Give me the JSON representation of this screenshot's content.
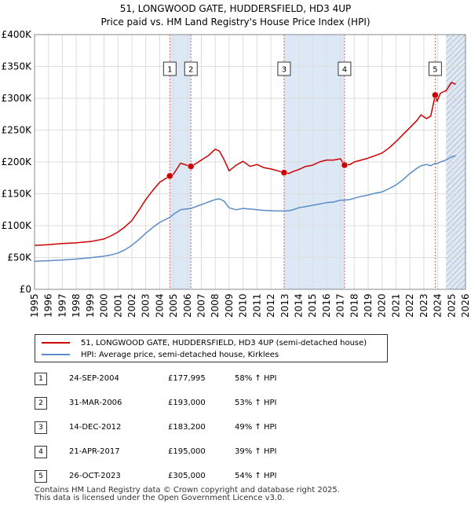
{
  "chart_data": {
    "type": "line",
    "title": "51, LONGWOOD GATE, HUDDERSFIELD, HD3 4UP",
    "subtitle": "Price paid vs. HM Land Registry's House Price Index (HPI)",
    "xlim": [
      1995,
      2026
    ],
    "ylim": [
      0,
      400000
    ],
    "x_ticks": [
      "1995",
      "1996",
      "1997",
      "1998",
      "1999",
      "2000",
      "2001",
      "2002",
      "2003",
      "2004",
      "2005",
      "2006",
      "2007",
      "2008",
      "2009",
      "2010",
      "2011",
      "2012",
      "2013",
      "2014",
      "2015",
      "2016",
      "2017",
      "2018",
      "2019",
      "2020",
      "2021",
      "2022",
      "2023",
      "2024",
      "2025",
      "2026"
    ],
    "y_ticks": [
      {
        "value": 0,
        "label": "£0"
      },
      {
        "value": 50000,
        "label": "£50K"
      },
      {
        "value": 100000,
        "label": "£100K"
      },
      {
        "value": 150000,
        "label": "£150K"
      },
      {
        "value": 200000,
        "label": "£200K"
      },
      {
        "value": 250000,
        "label": "£250K"
      },
      {
        "value": 300000,
        "label": "£300K"
      },
      {
        "value": 350000,
        "label": "£350K"
      },
      {
        "value": 400000,
        "label": "£400K"
      }
    ],
    "grid": true,
    "colors": {
      "property": "#cc0000",
      "hpi": "#5b8cc8",
      "shade": "#dde8f6",
      "marker_line": "#e06666",
      "grid": "#dddddd"
    },
    "series": [
      {
        "name": "51, LONGWOOD GATE, HUDDERSFIELD, HD3 4UP (semi-detached house)",
        "x": [
          1995,
          1996,
          1997,
          1998,
          1999,
          2000,
          2000.5,
          2001,
          2001.5,
          2002,
          2002.5,
          2003,
          2003.5,
          2004,
          2004.73,
          2005,
          2005.5,
          2006.25,
          2006.5,
          2007,
          2007.5,
          2008,
          2008.3,
          2008.6,
          2009,
          2009.5,
          2010,
          2010.5,
          2011,
          2011.5,
          2012,
          2012.5,
          2012.95,
          2013.3,
          2013.6,
          2014,
          2014.5,
          2015,
          2015.5,
          2016,
          2016.5,
          2017.0,
          2017.3,
          2017.7,
          2018,
          2018.5,
          2019,
          2019.5,
          2020,
          2020.5,
          2021,
          2021.5,
          2022,
          2022.5,
          2022.8,
          2023.2,
          2023.5,
          2023.82,
          2023.95,
          2024.2,
          2024.6,
          2025,
          2025.3
        ],
        "values": [
          69000,
          70000,
          72000,
          73000,
          75000,
          79000,
          84000,
          90000,
          98000,
          108000,
          124000,
          141000,
          155000,
          168000,
          177995,
          181000,
          198000,
          193000,
          196000,
          203000,
          210000,
          220000,
          217000,
          205000,
          186000,
          195000,
          201000,
          193000,
          196000,
          191000,
          189000,
          186000,
          183200,
          182000,
          185000,
          188000,
          193000,
          195000,
          200000,
          203000,
          203000,
          205000,
          195000,
          196000,
          200000,
          203000,
          206000,
          210000,
          214000,
          222000,
          232000,
          243000,
          254000,
          265000,
          274000,
          268000,
          272000,
          305000,
          295000,
          308000,
          312000,
          325000,
          322000
        ]
      },
      {
        "name": "HPI: Average price, semi-detached house, Kirklees",
        "x": [
          1995,
          1996,
          1997,
          1998,
          1999,
          2000,
          2000.5,
          2001,
          2001.5,
          2002,
          2002.5,
          2003,
          2003.5,
          2004,
          2004.73,
          2005,
          2005.5,
          2006.25,
          2006.5,
          2007,
          2007.5,
          2008,
          2008.3,
          2008.6,
          2009,
          2009.5,
          2010,
          2010.5,
          2011,
          2011.5,
          2012,
          2012.5,
          2012.95,
          2013.3,
          2013.6,
          2014,
          2014.5,
          2015,
          2015.5,
          2016,
          2016.5,
          2017.0,
          2017.3,
          2017.7,
          2018,
          2018.5,
          2019,
          2019.5,
          2020,
          2020.5,
          2021,
          2021.5,
          2022,
          2022.5,
          2022.8,
          2023.2,
          2023.5,
          2023.82,
          2023.95,
          2024.2,
          2024.6,
          2025,
          2025.3
        ],
        "values": [
          44000,
          45000,
          46000,
          47500,
          49500,
          52000,
          54000,
          57000,
          62000,
          69000,
          78000,
          88000,
          97000,
          105000,
          113000,
          118000,
          125000,
          127000,
          129000,
          133000,
          137000,
          141000,
          142000,
          139000,
          128000,
          125000,
          127000,
          126000,
          125000,
          124000,
          123500,
          123000,
          123000,
          123500,
          125000,
          128000,
          130000,
          132000,
          134000,
          136000,
          137000,
          140000,
          140000,
          141000,
          143000,
          146000,
          148000,
          151000,
          153000,
          158000,
          164000,
          172000,
          182000,
          190000,
          194000,
          196000,
          194000,
          198000,
          197000,
          200000,
          203000,
          208000,
          210000
        ]
      }
    ],
    "sale_markers": [
      {
        "label": "1",
        "x": 2004.73,
        "value": 177995
      },
      {
        "label": "2",
        "x": 2006.25,
        "value": 193000
      },
      {
        "label": "3",
        "x": 2012.95,
        "value": 183200
      },
      {
        "label": "4",
        "x": 2017.3,
        "value": 195000
      },
      {
        "label": "5",
        "x": 2023.82,
        "value": 305000
      }
    ],
    "shaded_periods": [
      {
        "from": 2004.73,
        "to": 2006.25
      },
      {
        "from": 2012.95,
        "to": 2017.3
      },
      {
        "from": 2024.6,
        "to": 2026
      }
    ],
    "hatched_from": 2024.6
  },
  "legend": {
    "property": "51, LONGWOOD GATE, HUDDERSFIELD, HD3 4UP (semi-detached house)",
    "hpi": "HPI: Average price, semi-detached house, Kirklees"
  },
  "sales": [
    {
      "num": "1",
      "date": "24-SEP-2004",
      "price": "£177,995",
      "hpi": "58% ↑ HPI"
    },
    {
      "num": "2",
      "date": "31-MAR-2006",
      "price": "£193,000",
      "hpi": "53% ↑ HPI"
    },
    {
      "num": "3",
      "date": "14-DEC-2012",
      "price": "£183,200",
      "hpi": "49% ↑ HPI"
    },
    {
      "num": "4",
      "date": "21-APR-2017",
      "price": "£195,000",
      "hpi": "39% ↑ HPI"
    },
    {
      "num": "5",
      "date": "26-OCT-2023",
      "price": "£305,000",
      "hpi": "54% ↑ HPI"
    }
  ],
  "footer": {
    "line1": "Contains HM Land Registry data © Crown copyright and database right 2025.",
    "line2": "This data is licensed under the Open Government Licence v3.0."
  }
}
